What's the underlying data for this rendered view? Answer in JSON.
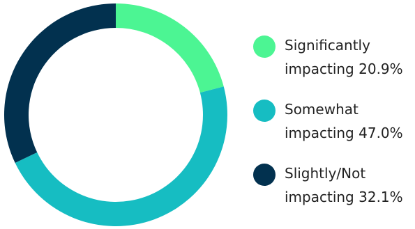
{
  "chart_data": {
    "type": "pie",
    "categories": [
      "Significantly impacting",
      "Somewhat impacting",
      "Slightly/Not impacting"
    ],
    "values": [
      20.9,
      47.0,
      32.1
    ],
    "colors": [
      "#4cf593",
      "#16bdc2",
      "#02314f"
    ],
    "donut": true,
    "legend_placement": "right",
    "legend_entries": [
      {
        "line1": "Significantly",
        "line2": "impacting 20.9%"
      },
      {
        "line1": "Somewhat",
        "line2": "impacting 47.0%"
      },
      {
        "line1": "Slightly/Not",
        "line2": "impacting 32.1%"
      }
    ]
  }
}
